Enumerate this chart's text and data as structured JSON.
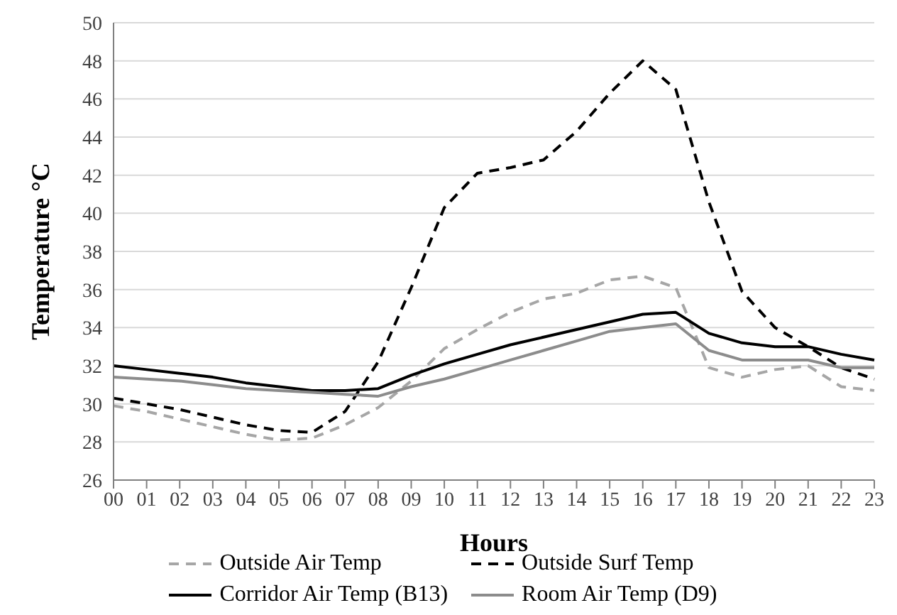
{
  "chart_data": {
    "type": "line",
    "xlabel": "Hours",
    "ylabel": "Temperature °C",
    "categories": [
      "00",
      "01",
      "02",
      "03",
      "04",
      "05",
      "06",
      "07",
      "08",
      "09",
      "10",
      "11",
      "12",
      "13",
      "14",
      "15",
      "16",
      "17",
      "18",
      "19",
      "20",
      "21",
      "22",
      "23"
    ],
    "series": [
      {
        "name": "Outside Air Temp",
        "color": "#a6a6a6",
        "line_style": "dashed",
        "values": [
          29.9,
          29.6,
          29.2,
          28.8,
          28.4,
          28.1,
          28.2,
          28.9,
          29.8,
          31.2,
          32.9,
          33.9,
          34.8,
          35.5,
          35.8,
          36.5,
          36.7,
          36.1,
          31.9,
          31.4,
          31.8,
          32.0,
          30.9,
          30.7
        ]
      },
      {
        "name": "Outside Surf Temp",
        "color": "#000000",
        "line_style": "dashed",
        "values": [
          30.3,
          30.0,
          29.7,
          29.3,
          28.9,
          28.6,
          28.5,
          29.6,
          32.2,
          36.1,
          40.3,
          42.1,
          42.4,
          42.8,
          44.3,
          46.3,
          48.0,
          46.5,
          40.6,
          35.9,
          34.0,
          33.0,
          31.9,
          31.3
        ]
      },
      {
        "name": "Corridor Air Temp (B13)",
        "color": "#000000",
        "line_style": "solid",
        "values": [
          32.0,
          31.8,
          31.6,
          31.4,
          31.1,
          30.9,
          30.7,
          30.7,
          30.8,
          31.5,
          32.1,
          32.6,
          33.1,
          33.5,
          33.9,
          34.3,
          34.7,
          34.8,
          33.7,
          33.2,
          33.0,
          33.0,
          32.6,
          32.3
        ]
      },
      {
        "name": "Room Air Temp (D9)",
        "color": "#8c8c8c",
        "line_style": "solid",
        "values": [
          31.4,
          31.3,
          31.2,
          31.0,
          30.8,
          30.7,
          30.6,
          30.5,
          30.4,
          30.9,
          31.3,
          31.8,
          32.3,
          32.8,
          33.3,
          33.8,
          34.0,
          34.2,
          32.8,
          32.3,
          32.3,
          32.3,
          31.9,
          31.9
        ]
      }
    ],
    "ylim": [
      26,
      50
    ],
    "yticks": [
      26,
      28,
      30,
      32,
      34,
      36,
      38,
      40,
      42,
      44,
      46,
      48,
      50
    ],
    "grid": "y",
    "legend": "bottom",
    "marker": "none"
  }
}
